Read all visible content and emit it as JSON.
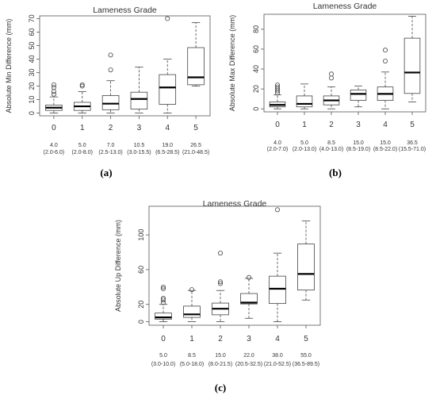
{
  "chart_data": [
    {
      "type": "box",
      "panel_label": "(a)",
      "title": "Lameness Grade",
      "ylabel": "Absolute Min Difference (mm)",
      "ylim": [
        -2,
        72
      ],
      "yticks": [
        0,
        10,
        20,
        30,
        40,
        50,
        60,
        70
      ],
      "categories": [
        "0",
        "1",
        "2",
        "3",
        "4",
        "5"
      ],
      "medians_text": [
        "4.0",
        "5.0",
        "7.0",
        "10.5",
        "19.0",
        "26.5"
      ],
      "ranges_text": [
        "(2.0-6.0)",
        "(2.0-8.0)",
        "(2.5-13.0)",
        "(3.0-15.5)",
        "(6.5-28.5)",
        "(21.0-48.5)"
      ],
      "boxes": [
        {
          "low": 0,
          "q1": 2,
          "median": 4,
          "q3": 6,
          "high": 12,
          "outliers": [
            14,
            16,
            19,
            21
          ]
        },
        {
          "low": 0,
          "q1": 2,
          "median": 5,
          "q3": 8,
          "high": 16,
          "outliers": [
            20,
            21
          ]
        },
        {
          "low": 0,
          "q1": 2.5,
          "median": 7,
          "q3": 13,
          "high": 24,
          "outliers": [
            32,
            43
          ]
        },
        {
          "low": 0,
          "q1": 3,
          "median": 10.5,
          "q3": 15.5,
          "high": 34,
          "outliers": []
        },
        {
          "low": 0,
          "q1": 6.5,
          "median": 19,
          "q3": 28.5,
          "high": 40,
          "outliers": [
            70
          ]
        },
        {
          "low": 20,
          "q1": 21,
          "median": 26.5,
          "q3": 48.5,
          "high": 67,
          "outliers": []
        }
      ]
    },
    {
      "type": "box",
      "panel_label": "(b)",
      "title": "Lameness Grade",
      "ylabel": "Absolute Max Difference (mm)",
      "ylim": [
        -3,
        95
      ],
      "yticks": [
        0,
        20,
        40,
        60,
        80
      ],
      "categories": [
        "0",
        "1",
        "2",
        "3",
        "4",
        "5"
      ],
      "medians_text": [
        "4.0",
        "5.0",
        "8.5",
        "15.0",
        "15.0",
        "36.5"
      ],
      "ranges_text": [
        "(2.0-7.0)",
        "(2.0-13.0)",
        "(4.0-13.0)",
        "(8.5-19.0)",
        "(8.5-22.0)",
        "(15.5-71.0)"
      ],
      "boxes": [
        {
          "low": 0,
          "q1": 2,
          "median": 4,
          "q3": 7,
          "high": 14,
          "outliers": [
            16,
            18,
            20,
            22,
            24
          ]
        },
        {
          "low": 0,
          "q1": 2,
          "median": 5,
          "q3": 13,
          "high": 25,
          "outliers": []
        },
        {
          "low": 0,
          "q1": 4,
          "median": 8.5,
          "q3": 13,
          "high": 22,
          "outliers": [
            31,
            35
          ]
        },
        {
          "low": 2,
          "q1": 8.5,
          "median": 15,
          "q3": 19,
          "high": 23,
          "outliers": []
        },
        {
          "low": 0,
          "q1": 8.5,
          "median": 15,
          "q3": 22,
          "high": 37,
          "outliers": [
            48,
            59
          ]
        },
        {
          "low": 7,
          "q1": 15.5,
          "median": 36.5,
          "q3": 71,
          "high": 93,
          "outliers": []
        }
      ]
    },
    {
      "type": "box",
      "panel_label": "(c)",
      "title": "Lameness Grade",
      "ylabel": "Absolute Up Difference (mm)",
      "ylim": [
        -4,
        133
      ],
      "yticks": [
        0,
        20,
        60,
        100
      ],
      "categories": [
        "0",
        "1",
        "2",
        "3",
        "4",
        "5"
      ],
      "medians_text": [
        "5.0",
        "8.5",
        "15.0",
        "22.0",
        "38.0",
        "55.0"
      ],
      "ranges_text": [
        "(3.0-10.0)",
        "(5.0-18.0)",
        "(8.0-21.5)",
        "(20.5-32.5)",
        "(21.0-52.5)",
        "(36.5-89.5)"
      ],
      "boxes": [
        {
          "low": 0,
          "q1": 3,
          "median": 5,
          "q3": 10,
          "high": 20,
          "outliers": [
            22,
            25,
            27,
            38,
            40
          ]
        },
        {
          "low": 0,
          "q1": 5,
          "median": 8.5,
          "q3": 18,
          "high": 36,
          "outliers": [
            37
          ]
        },
        {
          "low": 0,
          "q1": 8,
          "median": 15,
          "q3": 21.5,
          "high": 36,
          "outliers": [
            44,
            46,
            79
          ]
        },
        {
          "low": 4,
          "q1": 20.5,
          "median": 22,
          "q3": 32.5,
          "high": 50,
          "outliers": [
            51
          ]
        },
        {
          "low": 0,
          "q1": 21,
          "median": 38,
          "q3": 52.5,
          "high": 79,
          "outliers": [
            129
          ]
        },
        {
          "low": 25,
          "q1": 36.5,
          "median": 55,
          "q3": 89.5,
          "high": 116,
          "outliers": []
        }
      ]
    }
  ]
}
